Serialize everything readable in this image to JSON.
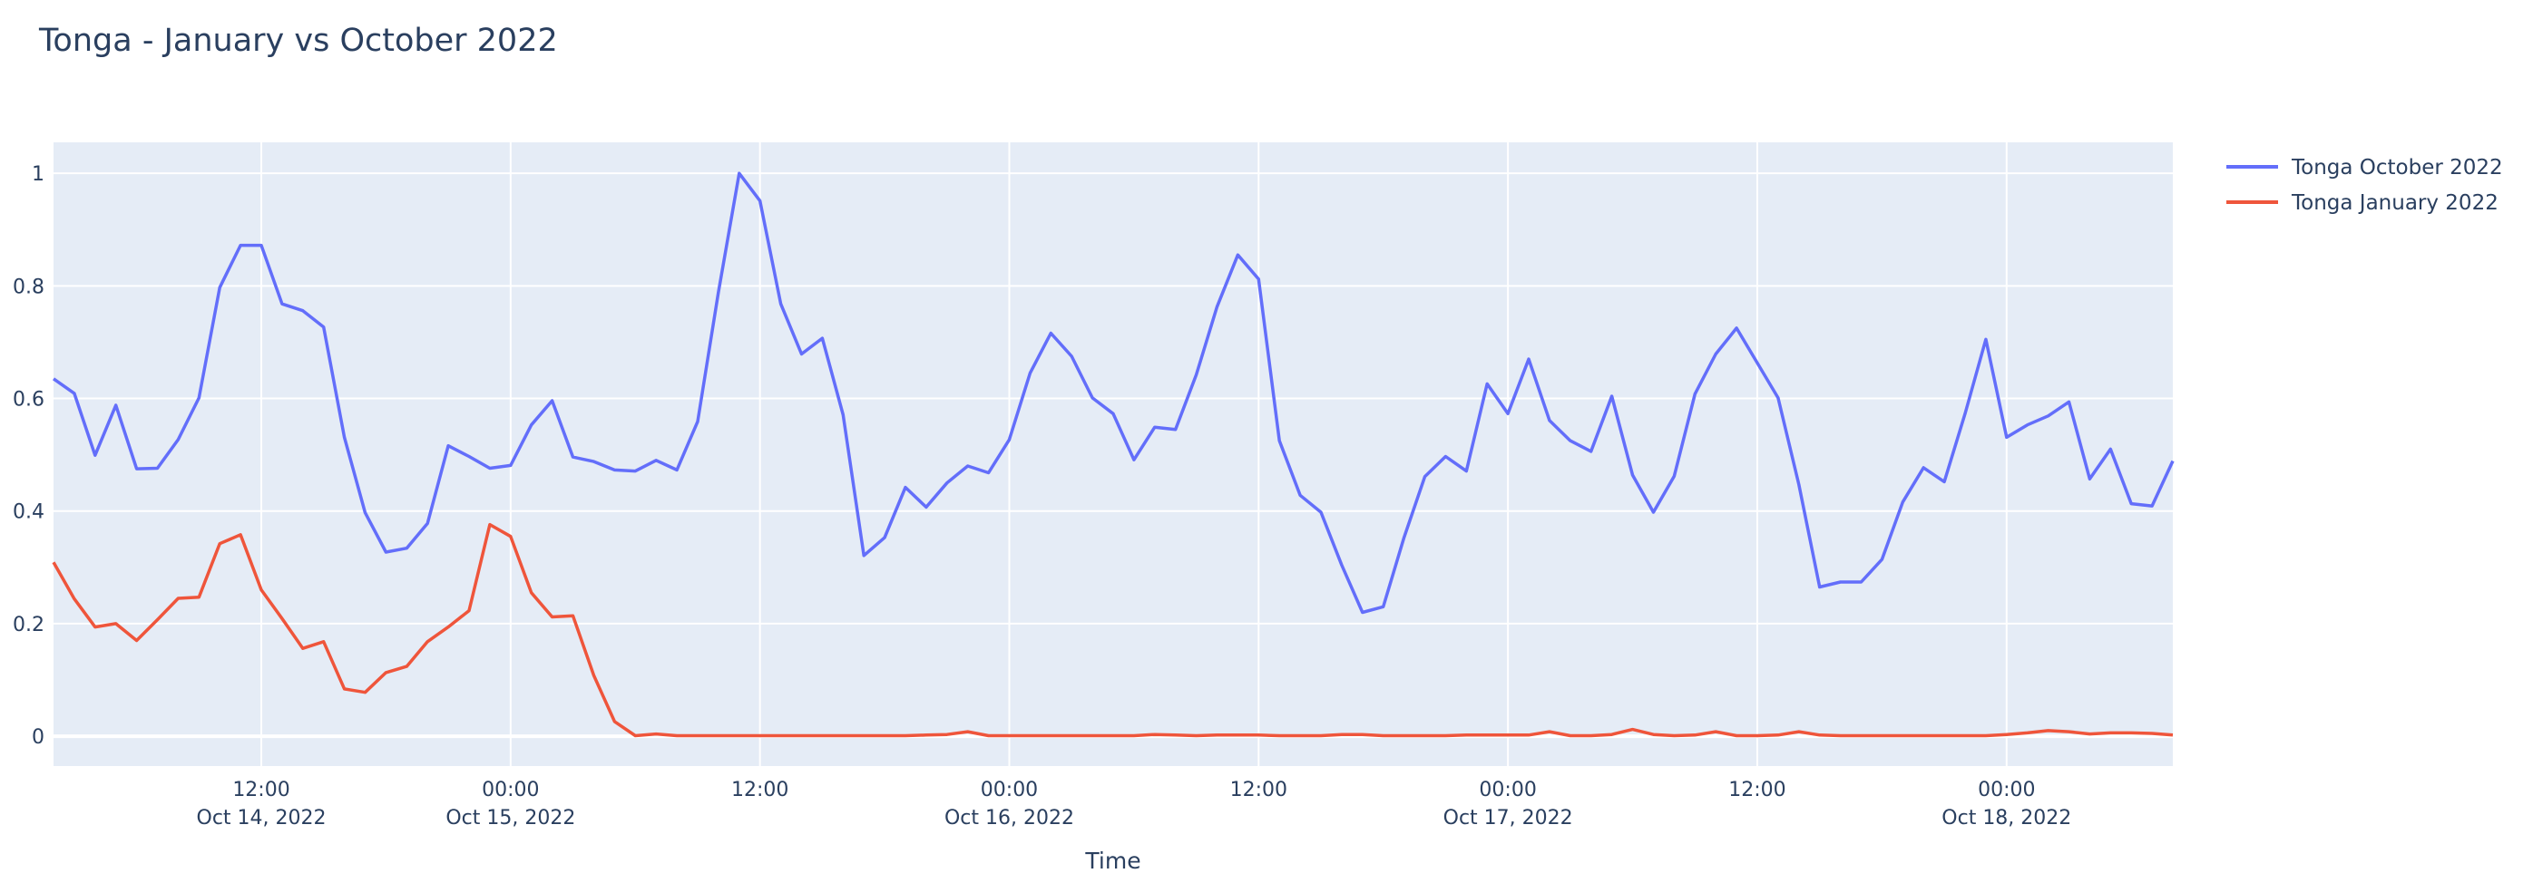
{
  "chart_data": {
    "type": "line",
    "title": "Tonga - January vs October 2022",
    "xlabel": "Time",
    "ylabel": "",
    "ylim": [
      -0.053,
      1.055
    ],
    "grid": true,
    "legend_position": "top-right outside",
    "background_color": "#E5ECF6",
    "text_color": "#2a3f5f",
    "yticks": [
      0,
      0.2,
      0.4,
      0.6,
      0.8,
      1
    ],
    "ytick_labels": [
      "0",
      "0.2",
      "0.4",
      "0.6",
      "0.8",
      "1"
    ],
    "xticks": [
      {
        "at": "2022-10-14 12:00",
        "line1": "12:00",
        "line2": "Oct 14, 2022"
      },
      {
        "at": "2022-10-15 00:00",
        "line1": "00:00",
        "line2": "Oct 15, 2022"
      },
      {
        "at": "2022-10-15 12:00",
        "line1": "12:00",
        "line2": ""
      },
      {
        "at": "2022-10-16 00:00",
        "line1": "00:00",
        "line2": "Oct 16, 2022"
      },
      {
        "at": "2022-10-16 12:00",
        "line1": "12:00",
        "line2": ""
      },
      {
        "at": "2022-10-17 00:00",
        "line1": "00:00",
        "line2": "Oct 17, 2022"
      },
      {
        "at": "2022-10-17 12:00",
        "line1": "12:00",
        "line2": ""
      },
      {
        "at": "2022-10-18 00:00",
        "line1": "00:00",
        "line2": "Oct 18, 2022"
      }
    ],
    "x": [
      "2022-10-14 02:00",
      "2022-10-14 03:00",
      "2022-10-14 04:00",
      "2022-10-14 05:00",
      "2022-10-14 06:00",
      "2022-10-14 07:00",
      "2022-10-14 08:00",
      "2022-10-14 09:00",
      "2022-10-14 10:00",
      "2022-10-14 11:00",
      "2022-10-14 12:00",
      "2022-10-14 13:00",
      "2022-10-14 14:00",
      "2022-10-14 15:00",
      "2022-10-14 16:00",
      "2022-10-14 17:00",
      "2022-10-14 18:00",
      "2022-10-14 19:00",
      "2022-10-14 20:00",
      "2022-10-14 21:00",
      "2022-10-14 22:00",
      "2022-10-14 23:00",
      "2022-10-15 00:00",
      "2022-10-15 01:00",
      "2022-10-15 02:00",
      "2022-10-15 03:00",
      "2022-10-15 04:00",
      "2022-10-15 05:00",
      "2022-10-15 06:00",
      "2022-10-15 07:00",
      "2022-10-15 08:00",
      "2022-10-15 09:00",
      "2022-10-15 10:00",
      "2022-10-15 11:00",
      "2022-10-15 12:00",
      "2022-10-15 13:00",
      "2022-10-15 14:00",
      "2022-10-15 15:00",
      "2022-10-15 16:00",
      "2022-10-15 17:00",
      "2022-10-15 18:00",
      "2022-10-15 19:00",
      "2022-10-15 20:00",
      "2022-10-15 21:00",
      "2022-10-15 22:00",
      "2022-10-15 23:00",
      "2022-10-16 00:00",
      "2022-10-16 01:00",
      "2022-10-16 02:00",
      "2022-10-16 03:00",
      "2022-10-16 04:00",
      "2022-10-16 05:00",
      "2022-10-16 06:00",
      "2022-10-16 07:00",
      "2022-10-16 08:00",
      "2022-10-16 09:00",
      "2022-10-16 10:00",
      "2022-10-16 11:00",
      "2022-10-16 12:00",
      "2022-10-16 13:00",
      "2022-10-16 14:00",
      "2022-10-16 15:00",
      "2022-10-16 16:00",
      "2022-10-16 17:00",
      "2022-10-16 18:00",
      "2022-10-16 19:00",
      "2022-10-16 20:00",
      "2022-10-16 21:00",
      "2022-10-16 22:00",
      "2022-10-16 23:00",
      "2022-10-17 00:00",
      "2022-10-17 01:00",
      "2022-10-17 02:00",
      "2022-10-17 03:00",
      "2022-10-17 04:00",
      "2022-10-17 05:00",
      "2022-10-17 06:00",
      "2022-10-17 07:00",
      "2022-10-17 08:00",
      "2022-10-17 09:00",
      "2022-10-17 10:00",
      "2022-10-17 11:00",
      "2022-10-17 12:00",
      "2022-10-17 13:00",
      "2022-10-17 14:00",
      "2022-10-17 15:00",
      "2022-10-17 16:00",
      "2022-10-17 17:00",
      "2022-10-17 18:00",
      "2022-10-17 19:00",
      "2022-10-17 20:00",
      "2022-10-17 21:00",
      "2022-10-17 22:00",
      "2022-10-17 23:00",
      "2022-10-18 00:00",
      "2022-10-18 01:00",
      "2022-10-18 02:00",
      "2022-10-18 03:00",
      "2022-10-18 04:00",
      "2022-10-18 05:00",
      "2022-10-18 06:00",
      "2022-10-18 07:00",
      "2022-10-18 08:00"
    ],
    "series": [
      {
        "name": "Tonga October 2022",
        "color": "#636efa",
        "values": [
          0.635,
          0.609,
          0.499,
          0.588,
          0.475,
          0.476,
          0.527,
          0.601,
          0.797,
          0.872,
          0.872,
          0.768,
          0.756,
          0.727,
          0.531,
          0.397,
          0.327,
          0.334,
          0.378,
          0.516,
          0.497,
          0.476,
          0.481,
          0.553,
          0.596,
          0.496,
          0.488,
          0.473,
          0.471,
          0.49,
          0.473,
          0.559,
          0.789,
          1.0,
          0.951,
          0.768,
          0.679,
          0.707,
          0.571,
          0.321,
          0.353,
          0.442,
          0.407,
          0.45,
          0.48,
          0.468,
          0.527,
          0.645,
          0.716,
          0.675,
          0.601,
          0.573,
          0.491,
          0.549,
          0.545,
          0.642,
          0.763,
          0.855,
          0.812,
          0.525,
          0.428,
          0.398,
          0.304,
          0.22,
          0.23,
          0.353,
          0.461,
          0.497,
          0.471,
          0.626,
          0.573,
          0.67,
          0.561,
          0.525,
          0.506,
          0.604,
          0.464,
          0.398,
          0.462,
          0.608,
          0.679,
          0.725,
          0.663,
          0.601,
          0.447,
          0.265,
          0.274,
          0.274,
          0.314,
          0.416,
          0.477,
          0.452,
          0.573,
          0.705,
          0.531,
          0.553,
          0.569,
          0.594,
          0.457,
          0.51,
          0.413,
          0.409,
          0.489
        ]
      },
      {
        "name": "Tonga January 2022",
        "color": "#EF553B",
        "values": [
          0.309,
          0.244,
          0.194,
          0.2,
          0.17,
          0.207,
          0.245,
          0.247,
          0.342,
          0.358,
          0.26,
          0.209,
          0.156,
          0.168,
          0.084,
          0.078,
          0.113,
          0.124,
          0.168,
          0.194,
          0.223,
          0.376,
          0.355,
          0.255,
          0.212,
          0.214,
          0.108,
          0.026,
          0.001,
          0.004,
          0.001,
          0.001,
          0.001,
          0.001,
          0.001,
          0.001,
          0.001,
          0.001,
          0.001,
          0.001,
          0.001,
          0.001,
          0.002,
          0.003,
          0.008,
          0.001,
          0.001,
          0.001,
          0.001,
          0.001,
          0.001,
          0.001,
          0.001,
          0.003,
          0.002,
          0.001,
          0.002,
          0.002,
          0.002,
          0.001,
          0.001,
          0.001,
          0.003,
          0.003,
          0.001,
          0.001,
          0.001,
          0.001,
          0.002,
          0.002,
          0.002,
          0.002,
          0.008,
          0.001,
          0.001,
          0.003,
          0.012,
          0.003,
          0.001,
          0.002,
          0.008,
          0.001,
          0.001,
          0.002,
          0.008,
          0.002,
          0.001,
          0.001,
          0.001,
          0.001,
          0.001,
          0.001,
          0.001,
          0.001,
          0.003,
          0.006,
          0.01,
          0.008,
          0.004,
          0.006,
          0.006,
          0.005,
          0.002
        ]
      }
    ]
  }
}
